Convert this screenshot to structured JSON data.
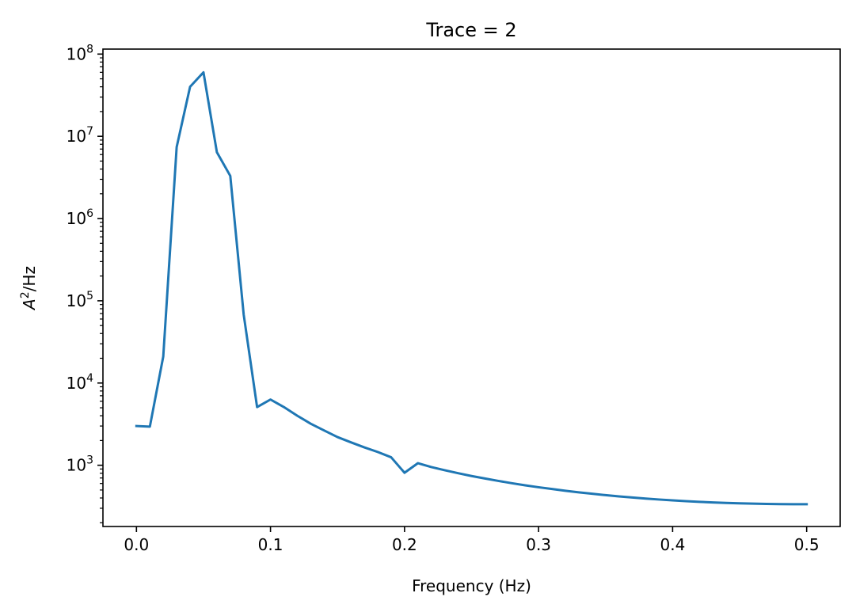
{
  "chart_data": {
    "type": "line",
    "title": "Trace = 2",
    "xlabel": "Frequency (Hz)",
    "ylabel_base": "A",
    "ylabel_sup": "2",
    "ylabel_rest": "/Hz",
    "xscale": "linear",
    "yscale": "log",
    "xlim": [
      -0.025,
      0.525
    ],
    "ylim": [
      180,
      115000000
    ],
    "grid": false,
    "legend": false,
    "x_ticks": [
      {
        "value": 0.0,
        "label": "0.0"
      },
      {
        "value": 0.1,
        "label": "0.1"
      },
      {
        "value": 0.2,
        "label": "0.2"
      },
      {
        "value": 0.3,
        "label": "0.3"
      },
      {
        "value": 0.4,
        "label": "0.4"
      },
      {
        "value": 0.5,
        "label": "0.5"
      }
    ],
    "y_ticks": [
      {
        "value": 1000,
        "base": "10",
        "exp": "3"
      },
      {
        "value": 10000,
        "base": "10",
        "exp": "4"
      },
      {
        "value": 100000,
        "base": "10",
        "exp": "5"
      },
      {
        "value": 1000000,
        "base": "10",
        "exp": "6"
      },
      {
        "value": 10000000,
        "base": "10",
        "exp": "7"
      },
      {
        "value": 100000000,
        "base": "10",
        "exp": "8"
      }
    ],
    "series": [
      {
        "color": "#1f77b4",
        "x": [
          0.0,
          0.01,
          0.02,
          0.03,
          0.04,
          0.05,
          0.06,
          0.07,
          0.08,
          0.09,
          0.1,
          0.11,
          0.12,
          0.13,
          0.14,
          0.15,
          0.16,
          0.17,
          0.18,
          0.19,
          0.2,
          0.21,
          0.22,
          0.23,
          0.24,
          0.25,
          0.26,
          0.27,
          0.28,
          0.29,
          0.3,
          0.31,
          0.32,
          0.33,
          0.34,
          0.35,
          0.36,
          0.37,
          0.38,
          0.39,
          0.4,
          0.41,
          0.42,
          0.43,
          0.44,
          0.45,
          0.46,
          0.47,
          0.48,
          0.49,
          0.5
        ],
        "y": [
          3000,
          2950,
          21000,
          7400000,
          40000000,
          60000000,
          6400000,
          3300000,
          68000,
          5100,
          6300,
          5100,
          4000,
          3200,
          2650,
          2200,
          1900,
          1650,
          1450,
          1250,
          810,
          1060,
          950,
          870,
          800,
          740,
          690,
          645,
          605,
          570,
          540,
          515,
          490,
          468,
          450,
          433,
          418,
          405,
          393,
          383,
          374,
          366,
          359,
          353,
          348,
          344,
          341,
          339,
          337,
          336,
          336
        ]
      }
    ]
  }
}
